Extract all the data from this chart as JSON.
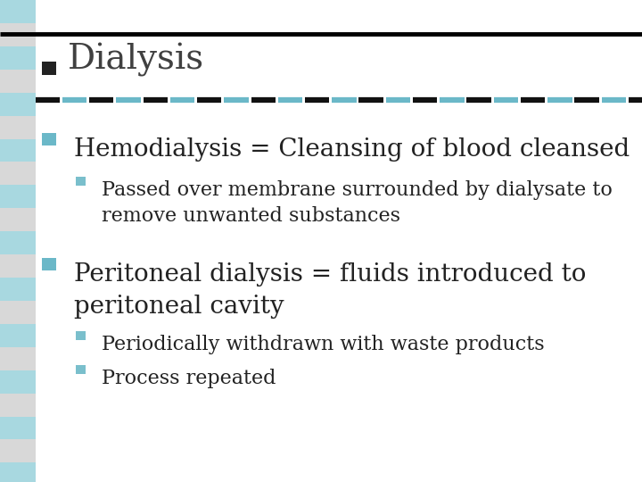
{
  "bg_color": "#ffffff",
  "stripe_color": "#a8d8e0",
  "grey_color": "#d8d8d8",
  "bullet_color_main": "#6bb8c8",
  "bullet_color_sub": "#7abfcc",
  "title_color": "#404040",
  "text_color": "#222222",
  "title_fontsize": 28,
  "main_fontsize": 20,
  "sub_fontsize": 16,
  "title": "Dialysis",
  "items": [
    {
      "level": 1,
      "text": "Hemodialysis = Cleansing of blood cleansed"
    },
    {
      "level": 2,
      "text": "Passed over membrane surrounded by dialysate to\nremove unwanted substances"
    },
    {
      "level": 1,
      "text": "Peritoneal dialysis = fluids introduced to\nperitoneal cavity"
    },
    {
      "level": 2,
      "text": "Periodically withdrawn with waste products"
    },
    {
      "level": 2,
      "text": "Process repeated"
    }
  ]
}
